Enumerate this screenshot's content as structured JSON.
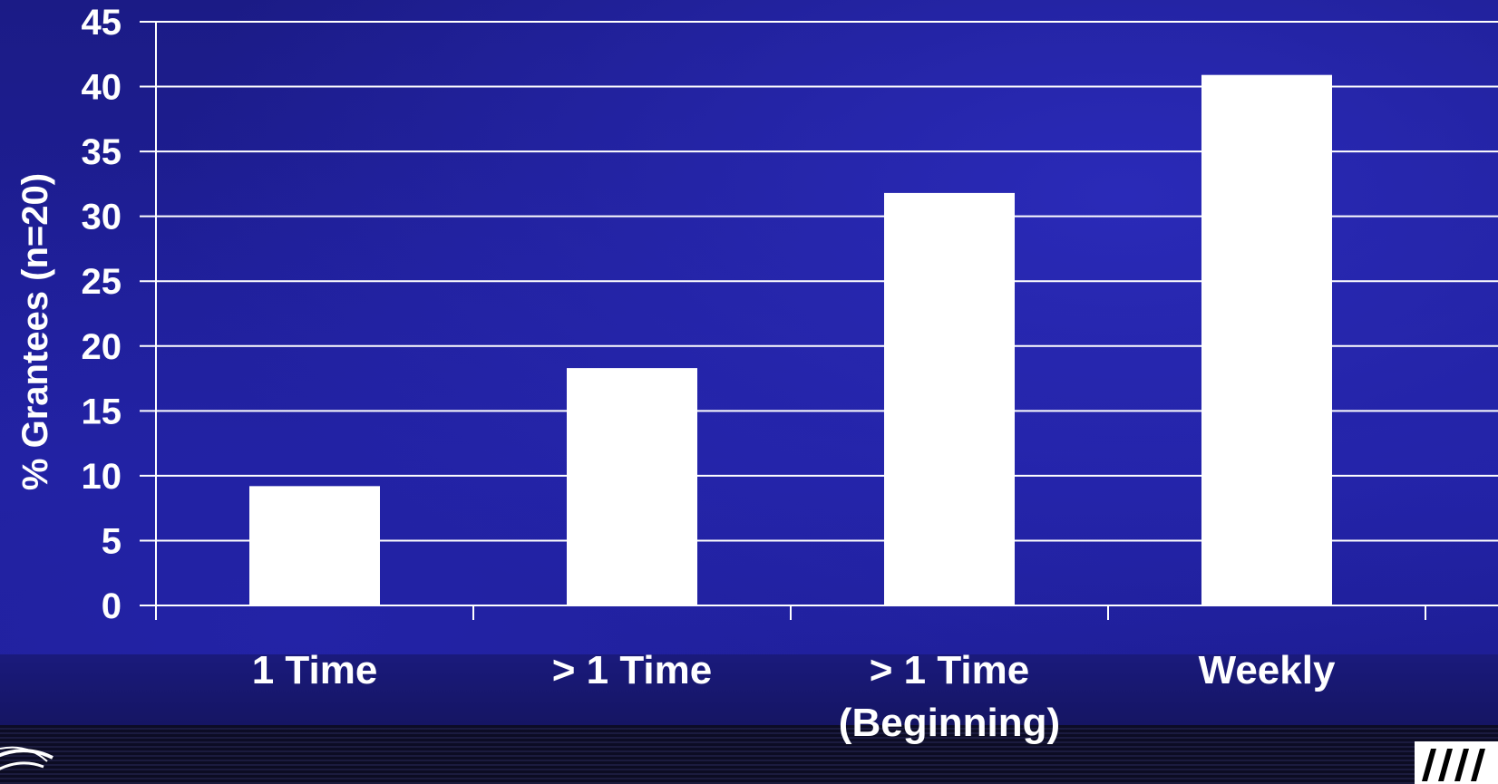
{
  "chart_data": {
    "type": "bar",
    "ylabel": "% Grantees (n=20)",
    "xlabel": "",
    "categories": [
      {
        "lines": [
          "1 Time"
        ]
      },
      {
        "lines": [
          "> 1 Time"
        ]
      },
      {
        "lines": [
          "> 1 Time",
          "(Beginning)"
        ]
      },
      {
        "lines": [
          "Weekly"
        ]
      }
    ],
    "values": [
      9.2,
      18.3,
      31.8,
      40.9
    ],
    "ylim": [
      0,
      45
    ],
    "yticks": [
      0,
      5,
      10,
      15,
      20,
      25,
      30,
      35,
      40,
      45
    ],
    "grid": true,
    "colors": {
      "bar": "#ffffff",
      "grid": "#ffffff",
      "text": "#ffffff",
      "background": "#1f1f9a"
    }
  },
  "decorations": {
    "left_corner": "circular-seal-logo",
    "right_corner": "institution-logo"
  }
}
